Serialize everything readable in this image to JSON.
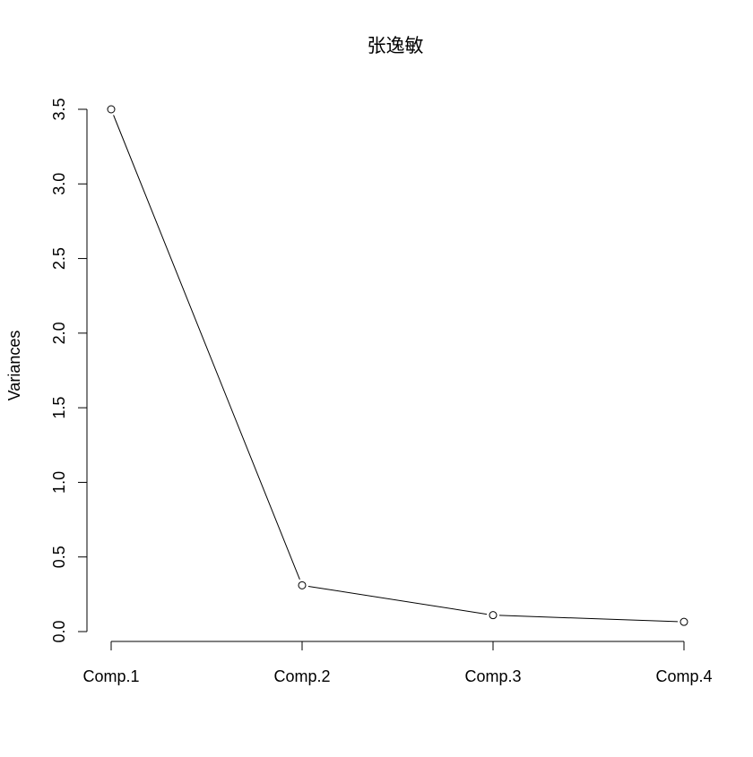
{
  "chart_data": {
    "type": "line",
    "title": "张逸敏",
    "xlabel": "",
    "ylabel": "Variances",
    "categories": [
      "Comp.1",
      "Comp.2",
      "Comp.3",
      "Comp.4"
    ],
    "series": [
      {
        "values": [
          3.5,
          0.31,
          0.11,
          0.065
        ]
      }
    ],
    "ylim": [
      0,
      3.5
    ],
    "yticks": [
      "0.0",
      "0.5",
      "1.0",
      "1.5",
      "2.0",
      "2.5",
      "3.0",
      "3.5"
    ],
    "grid": false,
    "legend": "none",
    "marker": "open-circle",
    "colors": {
      "line": "#000000",
      "marker_fill": "#ffffff",
      "background": "#ffffff"
    }
  }
}
